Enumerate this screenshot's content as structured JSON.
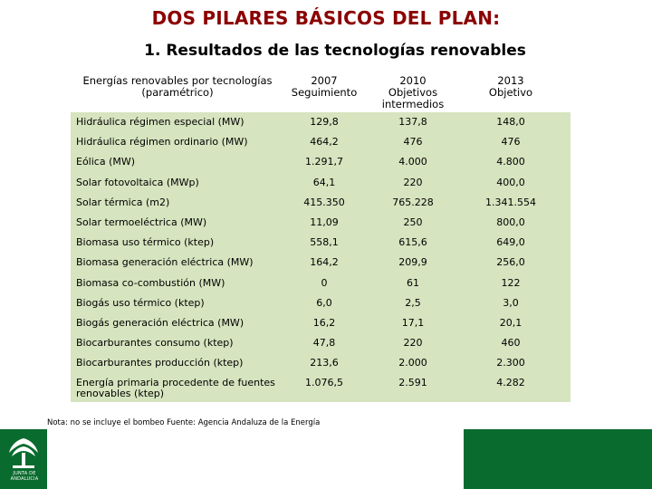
{
  "title": "DOS PILARES BÁSICOS DEL PLAN:",
  "subtitle": "1. Resultados de las tecnologías renovables",
  "table": {
    "headers": [
      "Energías renovables por tecnologías\n(paramétrico)",
      "2007\nSeguimiento",
      "2010\nObjetivos\nintermedios",
      "2013\nObjetivo"
    ],
    "rows": [
      [
        "Hidráulica régimen especial (MW)",
        "129,8",
        "137,8",
        "148,0"
      ],
      [
        "Hidráulica régimen ordinario (MW)",
        "464,2",
        "476",
        "476"
      ],
      [
        "Eólica (MW)",
        "1.291,7",
        "4.000",
        "4.800"
      ],
      [
        "Solar fotovoltaica (MWp)",
        "64,1",
        "220",
        "400,0"
      ],
      [
        "Solar térmica (m2)",
        "415.350",
        "765.228",
        "1.341.554"
      ],
      [
        "Solar termoeléctrica (MW)",
        "11,09",
        "250",
        "800,0"
      ],
      [
        "Biomasa uso térmico (ktep)",
        "558,1",
        "615,6",
        "649,0"
      ],
      [
        "Biomasa generación eléctrica (MW)",
        "164,2",
        "209,9",
        "256,0"
      ],
      [
        "Biomasa co-combustión (MW)",
        "0",
        "61",
        "122"
      ],
      [
        "Biogás uso térmico (ktep)",
        "6,0",
        "2,5",
        "3,0"
      ],
      [
        "Biogás generación eléctrica (MW)",
        "16,2",
        "17,1",
        "20,1"
      ],
      [
        "Biocarburantes consumo (ktep)",
        "47,8",
        "220",
        "460"
      ],
      [
        "Biocarburantes producción (ktep)",
        "213,6",
        "2.000",
        "2.300"
      ],
      [
        "Energía primaria procedente de fuentes\nrenovables (ktep)",
        "1.076,5",
        "2.591",
        "4.282"
      ]
    ]
  },
  "note": "Nota: no se incluye el bombeo Fuente: Agencia Andaluza de la Energía",
  "logo": {
    "icon": "junta-de-andalucia-logo",
    "text": "JUNTA DE ANDALUCIA"
  },
  "colors": {
    "title": "#8b0000",
    "table_bg": "#d6e4bf",
    "brand_green": "#0a6b2e"
  }
}
